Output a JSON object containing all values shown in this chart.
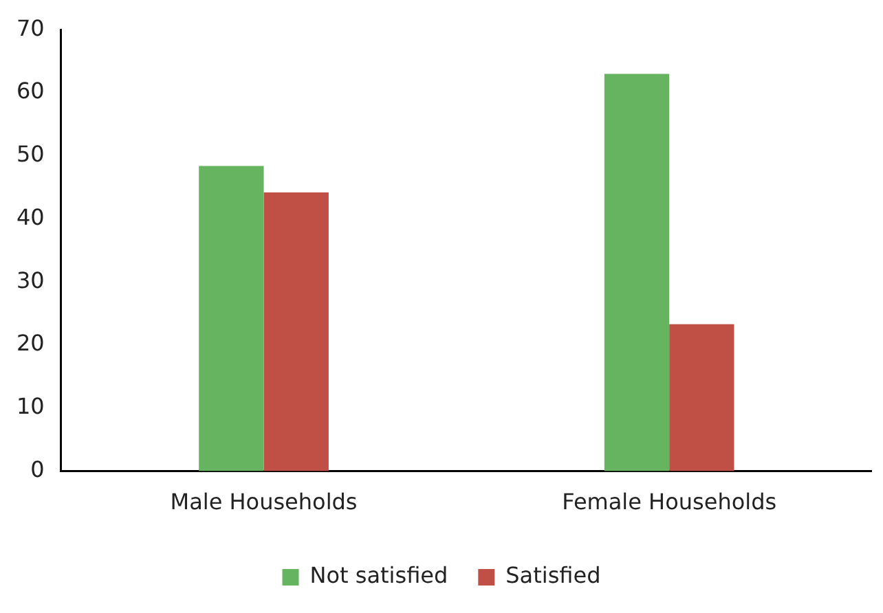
{
  "chart_data": {
    "type": "bar",
    "categories": [
      "Male Households",
      "Female Households"
    ],
    "series": [
      {
        "name": "Not satisfied",
        "color": "#66b45f",
        "values": [
          48.4,
          63
        ]
      },
      {
        "name": "Satisfied",
        "color": "#c05046",
        "values": [
          44.2,
          23.3
        ]
      }
    ],
    "ylim": [
      0,
      70
    ],
    "yticks": [
      0,
      10,
      20,
      30,
      40,
      50,
      60,
      70
    ],
    "grid": false,
    "legend": "bottom"
  }
}
